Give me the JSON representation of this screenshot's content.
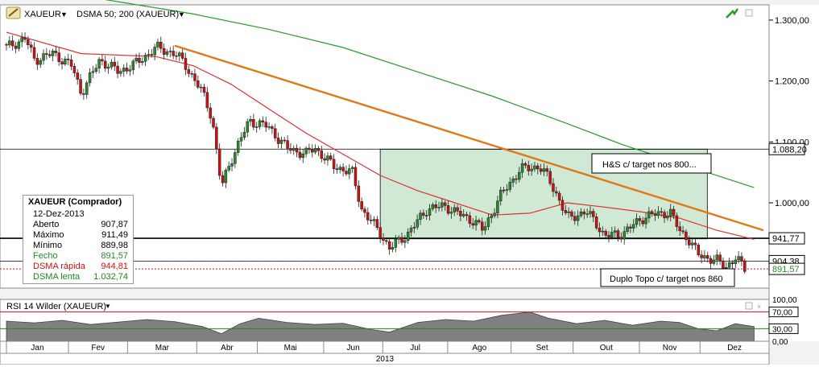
{
  "toolbar": {
    "symbol": "XAUEUR",
    "indicator": "DSMA 50; 200 (XAUEUR)",
    "rsi_label": "RSI 14 Wilder (XAUEUR)"
  },
  "info_box": {
    "title": "XAUEUR (Comprador)",
    "date": "12-Dez-2013",
    "rows": [
      {
        "label": "Aberto",
        "value": "907,87",
        "color": "#000000"
      },
      {
        "label": "Máximo",
        "value": "911,49",
        "color": "#000000"
      },
      {
        "label": "Mínimo",
        "value": "889,98",
        "color": "#000000"
      },
      {
        "label": "Fecho",
        "value": "891,57",
        "color": "#2a8a2a"
      },
      {
        "label": "DSMA rápida",
        "value": "944,81",
        "color": "#d01010"
      },
      {
        "label": "DSMA lenta",
        "value": "1.032,74",
        "color": "#1a8a1a"
      }
    ]
  },
  "annotations": {
    "hs": "H&S c/ target nos 800...",
    "double_top": "Duplo Topo c/ target nos 860"
  },
  "colors": {
    "up_candle": "#2a8a2a",
    "down_candle": "#d01010",
    "fast_ma": "#e03030",
    "slow_ma": "#2a9a2a",
    "trendline": "#e07818",
    "hs_box_fill": "#cfe9d4",
    "rsi_fill": "#808080"
  },
  "chart_data": [
    {
      "type": "candlestick",
      "title": "",
      "x_axis": {
        "months": [
          "Jan",
          "Fev",
          "Mar",
          "Abr",
          "Mai",
          "Jun",
          "Jul",
          "Ago",
          "Set",
          "Out",
          "Nov",
          "Dez"
        ],
        "year": "2013"
      },
      "y_axis": {
        "range": [
          860,
          1325
        ],
        "tick_values": [
          1000,
          1100,
          1200,
          1300
        ],
        "tick_labels": [
          "1.000,00",
          "1.100,00",
          "1.200,00",
          "1.300,00"
        ]
      },
      "grid": false,
      "price_tags": [
        {
          "value": 1088.2,
          "label": "1.088,20",
          "color": "#000000"
        },
        {
          "value": 941.77,
          "label": "941,77",
          "color": "#000000"
        },
        {
          "value": 904.38,
          "label": "904,38",
          "color": "#000000"
        },
        {
          "value": 891.57,
          "label": "891,57",
          "color": "#2a8a2a"
        }
      ],
      "horizontal_lines": [
        1088.2,
        941.77,
        904.38
      ],
      "dashed_line": 891.57,
      "close_anchors": [
        {
          "week": 0,
          "close": 1255
        },
        {
          "week": 2,
          "close": 1270
        },
        {
          "week": 3,
          "close": 1235
        },
        {
          "week": 5,
          "close": 1245
        },
        {
          "week": 7,
          "close": 1225
        },
        {
          "week": 8,
          "close": 1180
        },
        {
          "week": 10,
          "close": 1235
        },
        {
          "week": 12,
          "close": 1215
        },
        {
          "week": 14,
          "close": 1230
        },
        {
          "week": 16,
          "close": 1255
        },
        {
          "week": 18,
          "close": 1245
        },
        {
          "week": 19,
          "close": 1230
        },
        {
          "week": 21,
          "close": 1180
        },
        {
          "week": 22,
          "close": 1140
        },
        {
          "week": 23,
          "close": 1025
        },
        {
          "week": 24,
          "close": 1070
        },
        {
          "week": 26,
          "close": 1135
        },
        {
          "week": 28,
          "close": 1125
        },
        {
          "week": 30,
          "close": 1090
        },
        {
          "week": 32,
          "close": 1080
        },
        {
          "week": 33,
          "close": 1090
        },
        {
          "week": 35,
          "close": 1060
        },
        {
          "week": 37,
          "close": 1050
        },
        {
          "week": 38,
          "close": 990
        },
        {
          "week": 40,
          "close": 950
        },
        {
          "week": 41,
          "close": 925
        },
        {
          "week": 43,
          "close": 950
        },
        {
          "week": 45,
          "close": 990
        },
        {
          "week": 47,
          "close": 995
        },
        {
          "week": 48,
          "close": 985
        },
        {
          "week": 50,
          "close": 970
        },
        {
          "week": 51,
          "close": 955
        },
        {
          "week": 53,
          "close": 1015
        },
        {
          "week": 55,
          "close": 1055
        },
        {
          "week": 57,
          "close": 1060
        },
        {
          "week": 58,
          "close": 1040
        },
        {
          "week": 59,
          "close": 1010
        },
        {
          "week": 60,
          "close": 975
        },
        {
          "week": 62,
          "close": 985
        },
        {
          "week": 63,
          "close": 970
        },
        {
          "week": 64,
          "close": 945
        },
        {
          "week": 66,
          "close": 950
        },
        {
          "week": 68,
          "close": 975
        },
        {
          "week": 69,
          "close": 980
        },
        {
          "week": 71,
          "close": 985
        },
        {
          "week": 72,
          "close": 955
        },
        {
          "week": 73,
          "close": 940
        },
        {
          "week": 74,
          "close": 915
        },
        {
          "week": 76,
          "close": 905
        },
        {
          "week": 77,
          "close": 895
        },
        {
          "week": 78,
          "close": 910
        },
        {
          "week": 79,
          "close": 892
        }
      ],
      "fast_ma": [
        {
          "week": 0,
          "value": 1280
        },
        {
          "week": 8,
          "value": 1245
        },
        {
          "week": 16,
          "value": 1240
        },
        {
          "week": 20,
          "value": 1225
        },
        {
          "week": 24,
          "value": 1195
        },
        {
          "week": 28,
          "value": 1155
        },
        {
          "week": 32,
          "value": 1115
        },
        {
          "week": 36,
          "value": 1080
        },
        {
          "week": 40,
          "value": 1045
        },
        {
          "week": 44,
          "value": 1020
        },
        {
          "week": 48,
          "value": 1000
        },
        {
          "week": 52,
          "value": 980
        },
        {
          "week": 56,
          "value": 983
        },
        {
          "week": 60,
          "value": 1000
        },
        {
          "week": 64,
          "value": 993
        },
        {
          "week": 68,
          "value": 985
        },
        {
          "week": 72,
          "value": 975
        },
        {
          "week": 76,
          "value": 955
        },
        {
          "week": 80,
          "value": 940
        }
      ],
      "slow_ma": [
        {
          "week": 0,
          "value": 1340
        },
        {
          "week": 10,
          "value": 1335
        },
        {
          "week": 20,
          "value": 1310
        },
        {
          "week": 28,
          "value": 1285
        },
        {
          "week": 36,
          "value": 1255
        },
        {
          "week": 44,
          "value": 1215
        },
        {
          "week": 52,
          "value": 1175
        },
        {
          "week": 60,
          "value": 1130
        },
        {
          "week": 66,
          "value": 1095
        },
        {
          "week": 72,
          "value": 1065
        },
        {
          "week": 80,
          "value": 1025
        }
      ],
      "trendline": [
        {
          "week": 18,
          "value": 1258
        },
        {
          "week": 81,
          "value": 955
        }
      ],
      "hs_box": {
        "week_start": 40,
        "week_end": 75,
        "top": 1088,
        "bottom": 941
      }
    },
    {
      "type": "area",
      "title": "RSI 14 Wilder (XAUEUR)",
      "y_axis": {
        "range": [
          0,
          100
        ],
        "tick_values": [
          0,
          30,
          70,
          100
        ],
        "tick_labels": [
          "0,00",
          "30,00",
          "70,00",
          "100,00"
        ]
      },
      "levels": [
        30,
        70
      ],
      "rsi": [
        {
          "week": 0,
          "value": 48
        },
        {
          "week": 3,
          "value": 44
        },
        {
          "week": 6,
          "value": 50
        },
        {
          "week": 9,
          "value": 40
        },
        {
          "week": 12,
          "value": 46
        },
        {
          "week": 15,
          "value": 52
        },
        {
          "week": 18,
          "value": 47
        },
        {
          "week": 21,
          "value": 35
        },
        {
          "week": 23,
          "value": 18
        },
        {
          "week": 25,
          "value": 42
        },
        {
          "week": 27,
          "value": 55
        },
        {
          "week": 30,
          "value": 45
        },
        {
          "week": 33,
          "value": 40
        },
        {
          "week": 36,
          "value": 43
        },
        {
          "week": 39,
          "value": 28
        },
        {
          "week": 41,
          "value": 22
        },
        {
          "week": 44,
          "value": 45
        },
        {
          "week": 47,
          "value": 52
        },
        {
          "week": 50,
          "value": 48
        },
        {
          "week": 53,
          "value": 62
        },
        {
          "week": 56,
          "value": 70
        },
        {
          "week": 58,
          "value": 55
        },
        {
          "week": 61,
          "value": 42
        },
        {
          "week": 64,
          "value": 50
        },
        {
          "week": 67,
          "value": 38
        },
        {
          "week": 70,
          "value": 48
        },
        {
          "week": 72,
          "value": 45
        },
        {
          "week": 74,
          "value": 30
        },
        {
          "week": 76,
          "value": 25
        },
        {
          "week": 78,
          "value": 42
        },
        {
          "week": 80,
          "value": 35
        }
      ]
    }
  ]
}
